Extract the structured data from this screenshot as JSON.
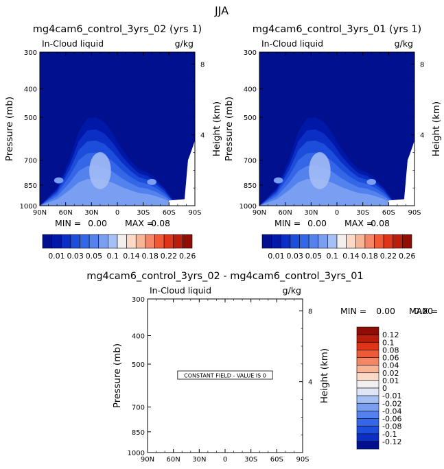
{
  "figure": {
    "title": "JJA",
    "colors": {
      "background_field": "#00108f",
      "panel_border": "#000000",
      "contour_scale": [
        "#00108f",
        "#0018a8",
        "#0b2fc4",
        "#1d4edb",
        "#3566e8",
        "#5381ee",
        "#7a9ff2",
        "#a7c0f4",
        "#f2efef",
        "#fbd9c7",
        "#f8b497",
        "#f48866",
        "#ef5a36",
        "#de3417",
        "#b81e0d",
        "#8f0d05"
      ],
      "difference_scale": [
        "#00108f",
        "#0b2fc4",
        "#1d4edb",
        "#3566e8",
        "#5381ee",
        "#7a9ff2",
        "#a7c0f4",
        "#dfe7f7",
        "#f2efef",
        "#fbd9c7",
        "#f8b497",
        "#f48866",
        "#ef5a36",
        "#de3417",
        "#b81e0d",
        "#8f0d05"
      ]
    }
  },
  "chart_data": [
    {
      "type": "contour",
      "id": "panel_a",
      "title": "mg4cam6_control_3yrs_02 (yrs 1)",
      "field_label": "In-Cloud liquid",
      "units": "g/kg",
      "ylabel": "Pressure (mb)",
      "ylabel_right": "Height (km)",
      "x_ticks": [
        "90N",
        "60N",
        "30N",
        "0",
        "30S",
        "60S",
        "90S"
      ],
      "x_range": [
        90,
        -90
      ],
      "y_ticks": [
        "300",
        "400",
        "500",
        "700",
        "850",
        "1000"
      ],
      "y_tick_values": [
        300,
        400,
        500,
        700,
        850,
        1000
      ],
      "y_range": [
        300,
        1000
      ],
      "height_ticks": [
        "8",
        "4"
      ],
      "height_tick_values": [
        8,
        4
      ],
      "min_label": "MIN =",
      "min": "0.00",
      "max_label": "MAX =",
      "max": "0.08",
      "contour_levels": [
        "0.01",
        "0.03",
        "0.05",
        "0.1",
        "0.14",
        "0.18",
        "0.22",
        "0.26"
      ],
      "cloud_profile": [
        {
          "lat": 90,
          "top": 1000
        },
        {
          "lat": 70,
          "top": 870
        },
        {
          "lat": 55,
          "top": 690
        },
        {
          "lat": 45,
          "top": 560
        },
        {
          "lat": 35,
          "top": 505
        },
        {
          "lat": 25,
          "top": 500
        },
        {
          "lat": 15,
          "top": 520
        },
        {
          "lat": 5,
          "top": 570
        },
        {
          "lat": -5,
          "top": 640
        },
        {
          "lat": -15,
          "top": 700
        },
        {
          "lat": -25,
          "top": 750
        },
        {
          "lat": -35,
          "top": 770
        },
        {
          "lat": -45,
          "top": 810
        },
        {
          "lat": -55,
          "top": 870
        },
        {
          "lat": -65,
          "top": 960
        },
        {
          "lat": -72,
          "top": 1000
        }
      ]
    },
    {
      "type": "contour",
      "id": "panel_b",
      "title": "mg4cam6_control_3yrs_01 (yrs 1)",
      "field_label": "In-Cloud liquid",
      "units": "g/kg",
      "ylabel": "Pressure (mb)",
      "ylabel_right": "Height (km)",
      "x_ticks": [
        "90N",
        "60N",
        "30N",
        "0",
        "30S",
        "60S",
        "90S"
      ],
      "x_range": [
        90,
        -90
      ],
      "y_ticks": [
        "300",
        "400",
        "500",
        "700",
        "850",
        "1000"
      ],
      "y_tick_values": [
        300,
        400,
        500,
        700,
        850,
        1000
      ],
      "y_range": [
        300,
        1000
      ],
      "height_ticks": [
        "8",
        "4"
      ],
      "height_tick_values": [
        8,
        4
      ],
      "min_label": "MIN =",
      "min": "0.00",
      "max_label": "MAX =",
      "max": "0.08",
      "contour_levels": [
        "0.01",
        "0.03",
        "0.05",
        "0.1",
        "0.14",
        "0.18",
        "0.22",
        "0.26"
      ],
      "cloud_profile": [
        {
          "lat": 90,
          "top": 1000
        },
        {
          "lat": 70,
          "top": 870
        },
        {
          "lat": 55,
          "top": 690
        },
        {
          "lat": 45,
          "top": 560
        },
        {
          "lat": 35,
          "top": 505
        },
        {
          "lat": 25,
          "top": 500
        },
        {
          "lat": 15,
          "top": 520
        },
        {
          "lat": 5,
          "top": 570
        },
        {
          "lat": -5,
          "top": 640
        },
        {
          "lat": -15,
          "top": 700
        },
        {
          "lat": -25,
          "top": 750
        },
        {
          "lat": -35,
          "top": 770
        },
        {
          "lat": -45,
          "top": 810
        },
        {
          "lat": -55,
          "top": 870
        },
        {
          "lat": -65,
          "top": 960
        },
        {
          "lat": -72,
          "top": 1000
        }
      ]
    },
    {
      "type": "contour",
      "id": "panel_c",
      "title": "mg4cam6_control_3yrs_02 - mg4cam6_control_3yrs_01",
      "field_label": "In-Cloud liquid",
      "units": "g/kg",
      "ylabel": "Pressure (mb)",
      "ylabel_right": "Height (km)",
      "x_ticks": [
        "90N",
        "60N",
        "30N",
        "0",
        "30S",
        "60S",
        "90S"
      ],
      "x_range": [
        90,
        -90
      ],
      "y_ticks": [
        "300",
        "400",
        "500",
        "700",
        "850",
        "1000"
      ],
      "y_tick_values": [
        300,
        400,
        500,
        700,
        850,
        1000
      ],
      "y_range": [
        300,
        1000
      ],
      "height_ticks": [
        "8",
        "4"
      ],
      "height_tick_values": [
        8,
        4
      ],
      "min_label": "MIN =",
      "min": "0.00",
      "max_label": "MAX =",
      "max": "0.00",
      "annotation": "CONSTANT FIELD - VALUE IS 0",
      "contour_levels": [
        "0.12",
        "0.1",
        "0.08",
        "0.06",
        "0.04",
        "0.02",
        "0.01",
        "0",
        "-0.01",
        "-0.02",
        "-0.04",
        "-0.06",
        "-0.08",
        "-0.1",
        "-0.12"
      ]
    }
  ]
}
